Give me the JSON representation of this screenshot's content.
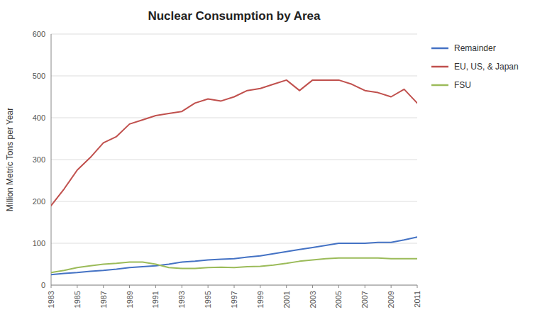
{
  "chart_data": {
    "type": "line",
    "title": "Nuclear Consumption by Area",
    "ylabel": "Million Metric Tons per Year",
    "x": [
      1983,
      1984,
      1985,
      1986,
      1987,
      1988,
      1989,
      1990,
      1991,
      1992,
      1993,
      1994,
      1995,
      1996,
      1997,
      1998,
      1999,
      2000,
      2001,
      2002,
      2003,
      2004,
      2005,
      2006,
      2007,
      2008,
      2009,
      2010,
      2011
    ],
    "series": [
      {
        "name": "Remainder",
        "color": "#4472C4",
        "values": [
          25,
          28,
          30,
          33,
          35,
          38,
          42,
          44,
          46,
          50,
          55,
          57,
          60,
          62,
          63,
          67,
          70,
          75,
          80,
          85,
          90,
          95,
          100,
          100,
          100,
          102,
          102,
          108,
          115
        ]
      },
      {
        "name": "EU, US, & Japan",
        "color": "#C0504D",
        "values": [
          190,
          230,
          275,
          305,
          340,
          355,
          385,
          395,
          405,
          410,
          415,
          435,
          445,
          440,
          450,
          465,
          470,
          480,
          490,
          465,
          490,
          490,
          490,
          480,
          465,
          460,
          450,
          468,
          435
        ]
      },
      {
        "name": "FSU",
        "color": "#9BBB59",
        "values": [
          30,
          35,
          42,
          46,
          50,
          52,
          55,
          55,
          50,
          42,
          40,
          40,
          42,
          43,
          42,
          44,
          45,
          48,
          52,
          57,
          60,
          63,
          65,
          65,
          65,
          65,
          63,
          63,
          63
        ]
      }
    ],
    "xlim": [
      1983,
      2011
    ],
    "xticks": [
      1983,
      1985,
      1987,
      1989,
      1991,
      1993,
      1995,
      1997,
      1999,
      2001,
      2003,
      2005,
      2007,
      2009,
      2011
    ],
    "ylim": [
      0,
      600
    ],
    "yticks": [
      0,
      100,
      200,
      300,
      400,
      500,
      600
    ],
    "grid": true,
    "legend": "right"
  }
}
